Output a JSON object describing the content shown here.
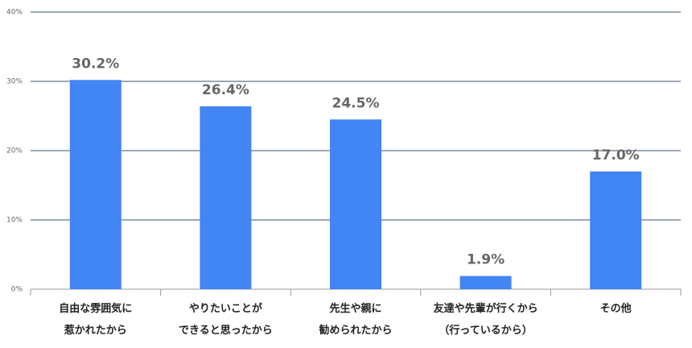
{
  "chart_data": {
    "type": "bar",
    "categories": [
      "自由な雰囲気に\n惹かれたから",
      "やりたいことが\nできると思ったから",
      "先生や親に\n勧められたから",
      "友達や先輩が行くから\n（行っているから）",
      "その他"
    ],
    "values": [
      30.2,
      26.4,
      24.5,
      1.9,
      17.0
    ],
    "value_labels": [
      "30.2%",
      "26.4%",
      "24.5%",
      "1.9%",
      "17.0%"
    ],
    "color": "#4285f4",
    "ylim": [
      0,
      40
    ],
    "yticks": [
      {
        "value": 0,
        "label": "0%"
      },
      {
        "value": 10,
        "label": "10%"
      },
      {
        "value": 20,
        "label": "20%"
      },
      {
        "value": 30,
        "label": "30%"
      },
      {
        "value": 40,
        "label": "40%"
      }
    ],
    "grid": true
  }
}
